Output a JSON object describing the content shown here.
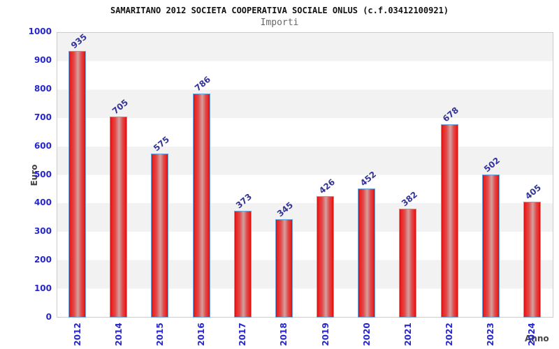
{
  "header": {
    "title": "SAMARITANO 2012 SOCIETA COOPERATIVA SOCIALE ONLUS (c.f.03412100921)",
    "subtitle": "Importi"
  },
  "axes": {
    "ylabel": "Euro",
    "xlabel": "Anno"
  },
  "colors": {
    "tick_blue": "#2626cf",
    "value_label_navy": "#333399",
    "bar_red_edge": "#c90d0d",
    "bar_red_bright": "#ee2020",
    "bar_highlight": "#d5a0a0",
    "bar_border_blue": "#6fa8dc",
    "band_gray": "#f2f2f2",
    "band_white": "#ffffff",
    "plot_border": "#cccccc",
    "axis_title_dark": "#444444",
    "title_black": "#111111",
    "subtitle_gray": "#666666"
  },
  "chart_data": {
    "type": "bar",
    "title": "SAMARITANO 2012 SOCIETA COOPERATIVA SOCIALE ONLUS (c.f.03412100921)",
    "subtitle": "Importi",
    "categories": [
      "2012",
      "2014",
      "2015",
      "2016",
      "2017",
      "2018",
      "2019",
      "2020",
      "2021",
      "2022",
      "2023",
      "2024"
    ],
    "values": [
      935,
      705,
      575,
      786,
      373,
      345,
      426,
      452,
      382,
      678,
      502,
      405
    ],
    "xlabel": "Anno",
    "ylabel": "Euro",
    "ylim": [
      0,
      1000
    ],
    "ytick_step": 100,
    "grid": "alternating-horizontal-bands",
    "legend": "none",
    "bar_value_labels_rotation_deg": -40,
    "x_tick_labels_rotation_deg": -90
  }
}
